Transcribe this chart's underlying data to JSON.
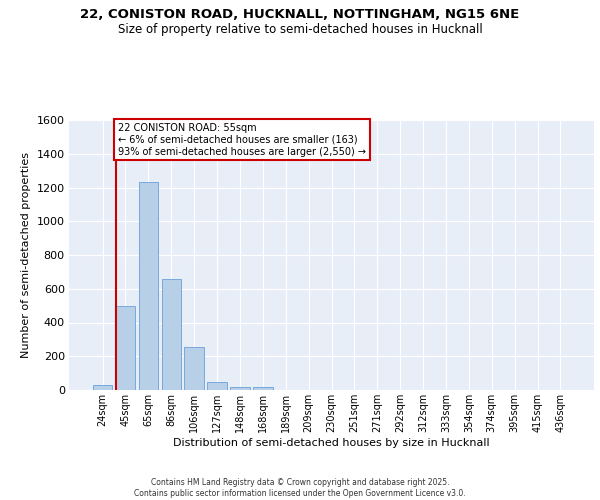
{
  "title_line1": "22, CONISTON ROAD, HUCKNALL, NOTTINGHAM, NG15 6NE",
  "title_line2": "Size of property relative to semi-detached houses in Hucknall",
  "xlabel": "Distribution of semi-detached houses by size in Hucknall",
  "ylabel": "Number of semi-detached properties",
  "bar_labels": [
    "24sqm",
    "45sqm",
    "65sqm",
    "86sqm",
    "106sqm",
    "127sqm",
    "148sqm",
    "168sqm",
    "189sqm",
    "209sqm",
    "230sqm",
    "251sqm",
    "271sqm",
    "292sqm",
    "312sqm",
    "333sqm",
    "354sqm",
    "374sqm",
    "395sqm",
    "415sqm",
    "436sqm"
  ],
  "bar_values": [
    30,
    500,
    1230,
    660,
    255,
    45,
    20,
    15,
    0,
    0,
    0,
    0,
    0,
    0,
    0,
    0,
    0,
    0,
    0,
    0,
    0
  ],
  "bar_color": "#b8cfe8",
  "bar_edge_color": "#6a9fd8",
  "background_color": "#e8eef8",
  "grid_color": "#ffffff",
  "vline_color": "#cc0000",
  "annotation_title": "22 CONISTON ROAD: 55sqm",
  "annotation_line2": "← 6% of semi-detached houses are smaller (163)",
  "annotation_line3": "93% of semi-detached houses are larger (2,550) →",
  "annotation_box_color": "#cc0000",
  "ylim": [
    0,
    1600
  ],
  "yticks": [
    0,
    200,
    400,
    600,
    800,
    1000,
    1200,
    1400,
    1600
  ],
  "footer_line1": "Contains HM Land Registry data © Crown copyright and database right 2025.",
  "footer_line2": "Contains public sector information licensed under the Open Government Licence v3.0."
}
